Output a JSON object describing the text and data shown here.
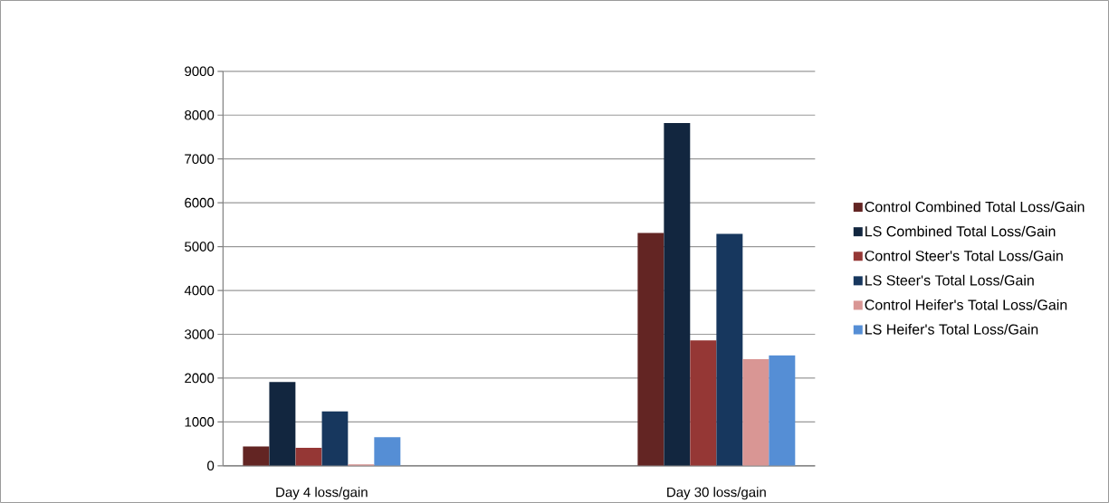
{
  "chart_data": {
    "type": "bar",
    "categories": [
      "Day 4 loss/gain",
      null,
      "Day 30 loss/gain"
    ],
    "series": [
      {
        "name": "Control Combined Total Loss/Gain",
        "color": "#632523",
        "values": [
          440,
          null,
          5310
        ]
      },
      {
        "name": "LS Combined Total Loss/Gain",
        "color": "#12263f",
        "values": [
          1910,
          null,
          7820
        ]
      },
      {
        "name": "Control Steer's Total Loss/Gain",
        "color": "#953735",
        "values": [
          410,
          null,
          2860
        ]
      },
      {
        "name": "LS Steer's Total Loss/Gain",
        "color": "#17375e",
        "values": [
          1240,
          null,
          5290
        ]
      },
      {
        "name": "Control Heifer's Total Loss/Gain",
        "color": "#d99694",
        "values": [
          30,
          null,
          2430
        ]
      },
      {
        "name": "LS Heifer's Total Loss/Gain",
        "color": "#558ed5",
        "values": [
          650,
          null,
          2520
        ]
      }
    ],
    "ylim": [
      0,
      9000
    ],
    "yticks": [
      0,
      1000,
      2000,
      3000,
      4000,
      5000,
      6000,
      7000,
      8000,
      9000
    ],
    "grid": "y",
    "legend": "right"
  }
}
